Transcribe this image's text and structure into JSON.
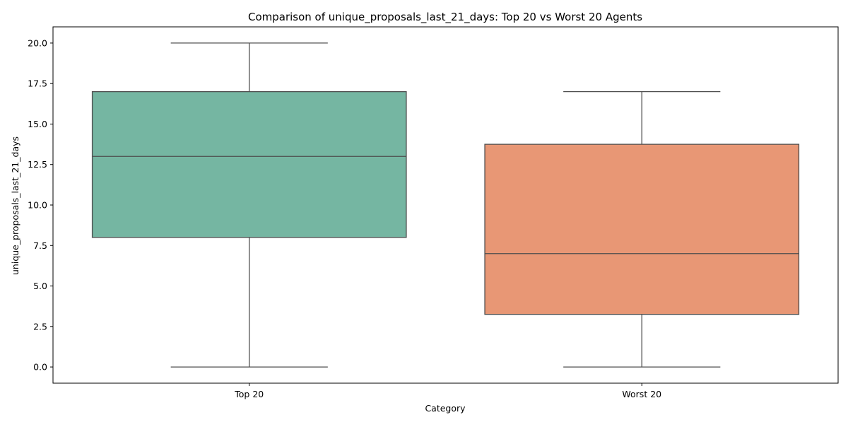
{
  "chart_data": {
    "type": "box",
    "title": "Comparison of unique_proposals_last_21_days: Top 20 vs Worst 20 Agents",
    "xlabel": "Category",
    "ylabel": "unique_proposals_last_21_days",
    "ylim": [
      -1.0,
      21.0
    ],
    "yticks": [
      0.0,
      2.5,
      5.0,
      7.5,
      10.0,
      12.5,
      15.0,
      17.5,
      20.0
    ],
    "ytick_labels": [
      "0.0",
      "2.5",
      "5.0",
      "7.5",
      "10.0",
      "12.5",
      "15.0",
      "17.5",
      "20.0"
    ],
    "grid": false,
    "categories": [
      "Top 20",
      "Worst 20"
    ],
    "boxes": [
      {
        "category": "Top 20",
        "whisker_low": 0,
        "q1": 8,
        "median": 13,
        "q3": 17,
        "whisker_high": 20,
        "color": "#75b6a2"
      },
      {
        "category": "Worst 20",
        "whisker_low": 0,
        "q1": 3.25,
        "median": 7,
        "q3": 13.75,
        "whisker_high": 17,
        "color": "#e89775"
      }
    ],
    "line_color": "#4d4d4d"
  }
}
